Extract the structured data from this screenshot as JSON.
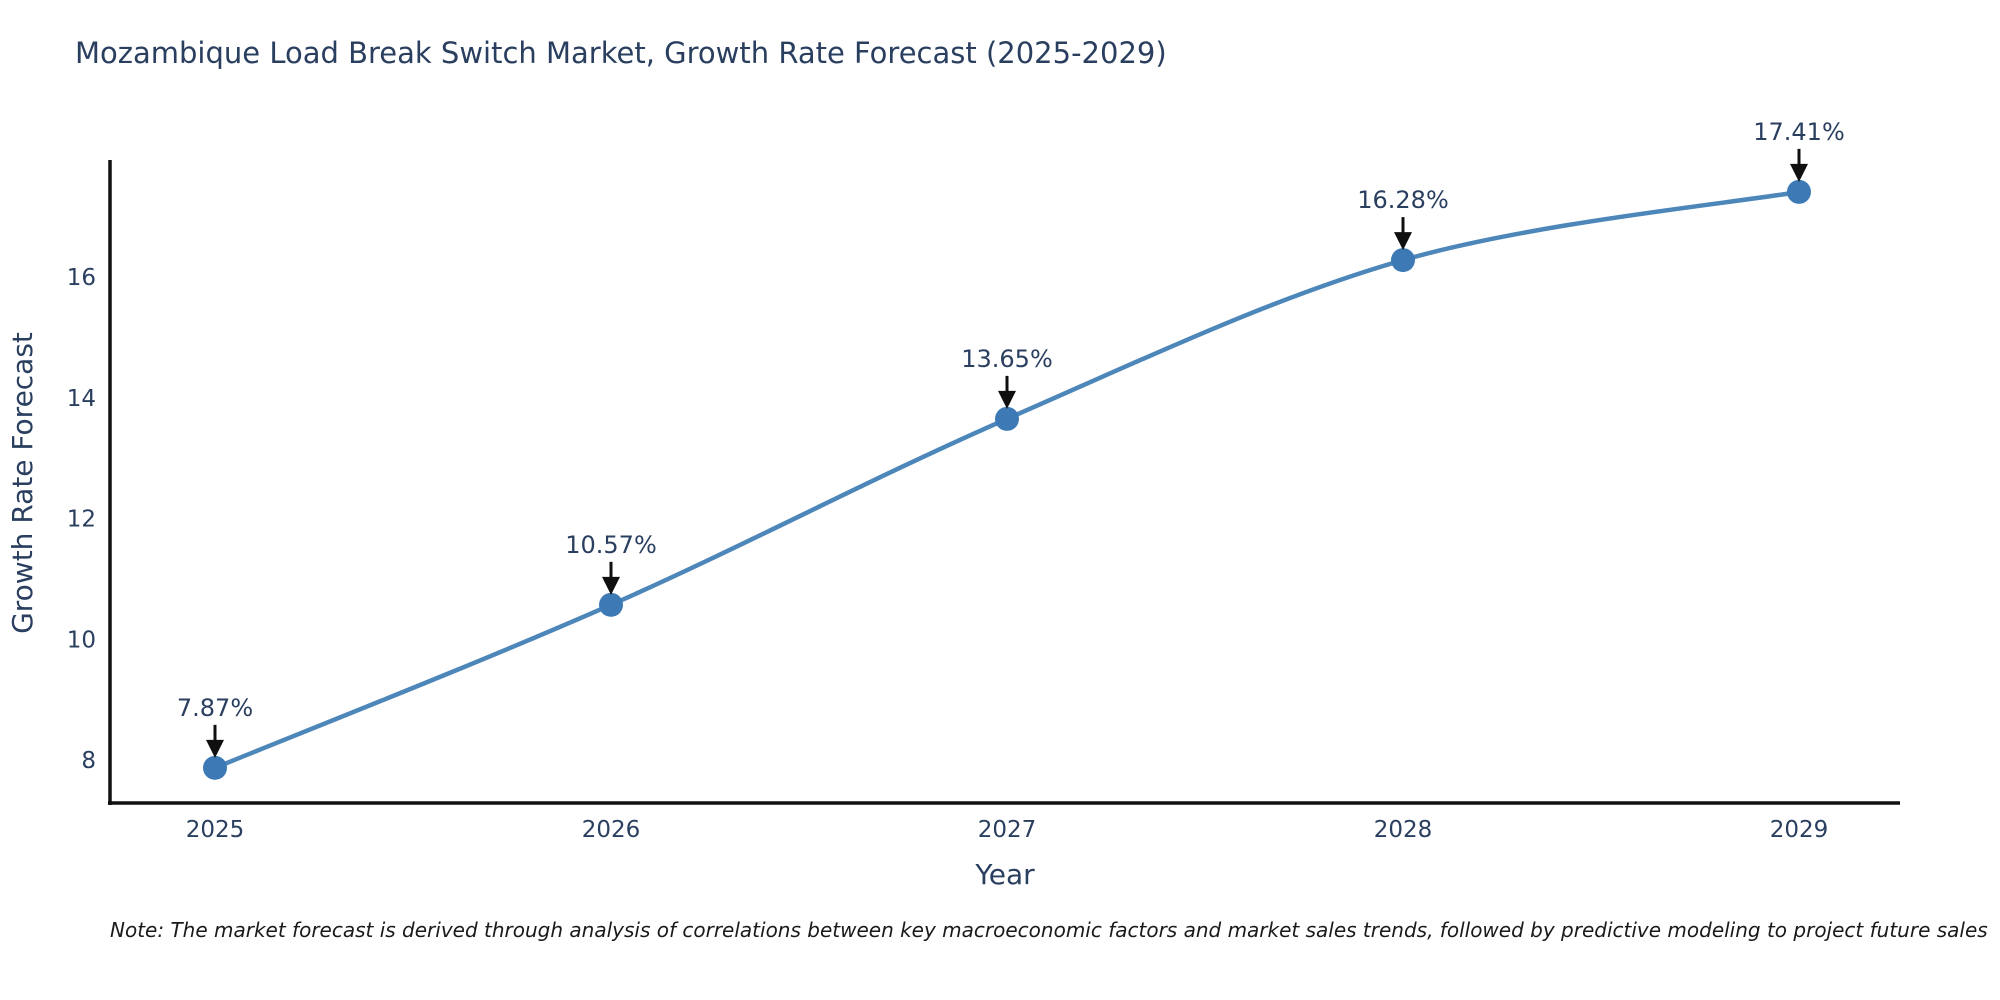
{
  "chart_data": {
    "type": "line",
    "title": "Mozambique Load Break Switch Market, Growth Rate Forecast (2025-2029)",
    "xlabel": "Year",
    "ylabel": "Growth Rate Forecast",
    "categories": [
      "2025",
      "2026",
      "2027",
      "2028",
      "2029"
    ],
    "series": [
      {
        "name": "Growth Rate Forecast",
        "values": [
          7.87,
          10.57,
          13.65,
          16.28,
          17.41
        ]
      }
    ],
    "point_labels": [
      "7.87%",
      "10.57%",
      "13.65%",
      "16.28%",
      "17.41%"
    ],
    "yticks": [
      8,
      10,
      12,
      14,
      16
    ],
    "ylim": [
      7.29,
      17.95
    ],
    "line_shape": "spline",
    "grid": false,
    "legend": false,
    "note": "Note: The market forecast is derived through analysis of correlations between key macroeconomic factors and market sales trends, followed by predictive modeling to project future sales",
    "colors": {
      "line": "#4d87ba",
      "marker": "#3d7ab5",
      "axis": "#111111",
      "text": "#2a3f5f",
      "arrow": "#0f0f0f",
      "background": "#ffffff"
    }
  }
}
